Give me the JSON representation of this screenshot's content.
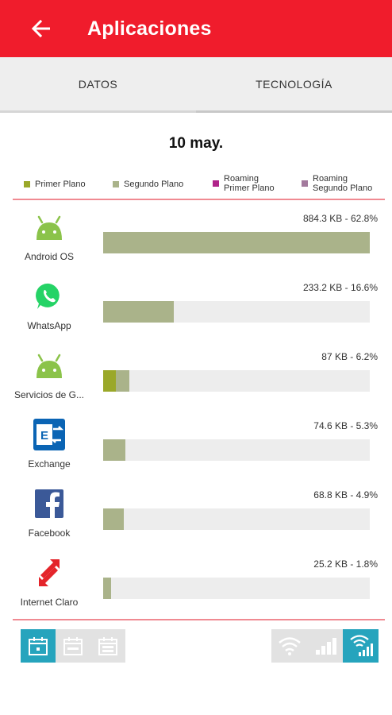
{
  "appbar": {
    "title": "Aplicaciones",
    "back_icon": "arrow-left-icon",
    "color": "#f01c2c"
  },
  "tabs": [
    {
      "label": "DATOS",
      "active": false
    },
    {
      "label": "TECNOLOGÍA",
      "active": true
    }
  ],
  "date": "10 may.",
  "legend": [
    {
      "label": "Primer Plano",
      "color": "#9aa829"
    },
    {
      "label": "Segundo Plano",
      "color": "#aab38a"
    },
    {
      "line1": "Roaming",
      "line2": "Primer Plano",
      "color": "#b0248a"
    },
    {
      "line1": "Roaming",
      "line2": "Segundo Plano",
      "color": "#a37a9d"
    }
  ],
  "apps": [
    {
      "name": "Android OS",
      "value_text": "884.3 KB - 62.8%",
      "percent_of_max": 100,
      "foreground_percent_of_max": 0,
      "icon": "android-icon"
    },
    {
      "name": "WhatsApp",
      "value_text": "233.2 KB - 16.6%",
      "percent_of_max": 26.4,
      "foreground_percent_of_max": 0,
      "icon": "whatsapp-icon"
    },
    {
      "name": "Servicios de G...",
      "value_text": "87 KB - 6.2%",
      "percent_of_max": 9.9,
      "foreground_percent_of_max": 4.8,
      "icon": "android-icon"
    },
    {
      "name": "Exchange",
      "value_text": "74.6 KB - 5.3%",
      "percent_of_max": 8.4,
      "foreground_percent_of_max": 0,
      "icon": "exchange-icon"
    },
    {
      "name": "Facebook",
      "value_text": "68.8 KB - 4.9%",
      "percent_of_max": 7.8,
      "foreground_percent_of_max": 0,
      "icon": "facebook-icon"
    },
    {
      "name": "Internet Claro",
      "value_text": "25.2 KB - 1.8%",
      "percent_of_max": 2.9,
      "foreground_percent_of_max": 0,
      "icon": "claro-icon"
    }
  ],
  "period_buttons": [
    {
      "icon": "calendar-day-icon",
      "active": true
    },
    {
      "icon": "calendar-week-icon",
      "active": false
    },
    {
      "icon": "calendar-month-icon",
      "active": false
    }
  ],
  "network_buttons": [
    {
      "icon": "wifi-icon",
      "active": false
    },
    {
      "icon": "mobile-signal-icon",
      "active": false
    },
    {
      "icon": "wifi-and-mobile-icon",
      "active": true
    }
  ],
  "colors": {
    "accent": "#26a4bd",
    "foreground": "#9aa829",
    "background": "#aab38a",
    "track": "#ededed"
  }
}
